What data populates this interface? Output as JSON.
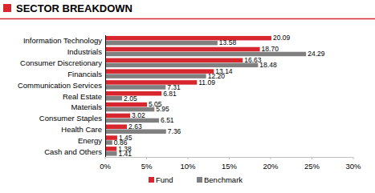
{
  "chart_data": {
    "type": "bar",
    "title": "SECTOR BREAKDOWN",
    "orientation": "horizontal",
    "categories": [
      "Information Technology",
      "Industrials",
      "Consumer Discretionary",
      "Financials",
      "Communication Services",
      "Real Estate",
      "Materials",
      "Consumer Staples",
      "Health Care",
      "Energy",
      "Cash and Others"
    ],
    "series": [
      {
        "name": "Fund",
        "color": "#d7262e",
        "values": [
          20.09,
          18.7,
          16.63,
          13.14,
          11.09,
          6.81,
          5.05,
          3.02,
          2.63,
          1.45,
          1.38
        ],
        "value_labels": [
          "20.09",
          "18.70",
          "16.63",
          "13.14",
          "11.09",
          "6.81",
          "5.05",
          "3.02",
          "2.63",
          "1.45",
          "1.38"
        ]
      },
      {
        "name": "Benchmark",
        "color": "#808080",
        "values": [
          13.58,
          24.29,
          18.48,
          12.2,
          7.31,
          2.05,
          5.95,
          6.51,
          7.36,
          0.86,
          1.41
        ],
        "value_labels": [
          "13.58",
          "24.29",
          "18.48",
          "12.20",
          "7.31",
          "2.05",
          "5.95",
          "6.51",
          "7.36",
          "0.86",
          "1.41"
        ]
      }
    ],
    "xlim": [
      0,
      30
    ],
    "xticks": [
      {
        "value": 0,
        "label": "0%"
      },
      {
        "value": 5,
        "label": "5%"
      },
      {
        "value": 10,
        "label": "10%"
      },
      {
        "value": 15,
        "label": "15%"
      },
      {
        "value": 20,
        "label": "20%"
      },
      {
        "value": 25,
        "label": "25%"
      },
      {
        "value": 30,
        "label": "30%"
      }
    ],
    "grid": false,
    "legend": "bottom",
    "data_labels": true
  }
}
